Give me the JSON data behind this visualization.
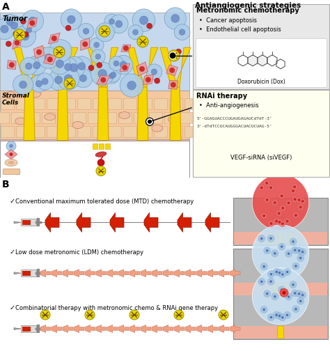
{
  "title_a": "A",
  "title_b": "B",
  "antiangiogenic_title": "Antiangiogenic strategies",
  "metronomic_title": "Metronomic chemotherapy",
  "metronomic_bullets": [
    "Cancer apoptosis",
    "Endothelial cell apoptosis"
  ],
  "dox_label": "Doxorubicin (Dox)",
  "rnai_title": "RNAi therapy",
  "rnai_bullets": [
    "Anti-angiogenesis"
  ],
  "rnai_seq1": "5'-GGAGUACCCUGAUGAGAUCdTdT-3'",
  "rnai_seq2": "3'-dTdTCCUCAUGGGACUACUCUAG-5'",
  "rnai_label": "VEGF-siRNA (siVEGF)",
  "mtd_label": "Conventional maximum tolerated dose (MTD) chemotherapy",
  "ldm_label": "Low dose metronomic (LDM) chemotherapy",
  "combo_label": "Combinatorial therapy with metronomic chemo & RNAi gene therapy",
  "colors": {
    "tumor_blue": "#c5d8ed",
    "cell_blue_face": "#aecde8",
    "cell_blue_edge": "#7aa0c0",
    "cell_nucleus_blue": "#7090c8",
    "cell_red_face": "#e8a0a0",
    "cell_red_edge": "#c06060",
    "cell_red_nucleus": "#cc2020",
    "yellow_vessel": "#f5d700",
    "yellow_vessel_edge": "#d4a000",
    "stromal_bg": "#f5c8a0",
    "stromal_brick_face": "#f0d0a8",
    "stromal_brick_edge": "#d4a878",
    "pink_bottom": "#f5b8a0",
    "pink_bottom_cell": "#f0a080",
    "dox_dot": "#cc1111",
    "vegf_yellow": "#e8d800",
    "vegf_edge": "#b0a000",
    "box_gray_bg": "#e5e5e5",
    "box_yellow_bg": "#fffff0",
    "red_mtd": "#d42000",
    "salmon_ldm": "#f0a080",
    "salmon_ldm_edge": "#d07060",
    "result_bg": "#b8b8b8",
    "result_base_pink": "#f0b0a0"
  }
}
